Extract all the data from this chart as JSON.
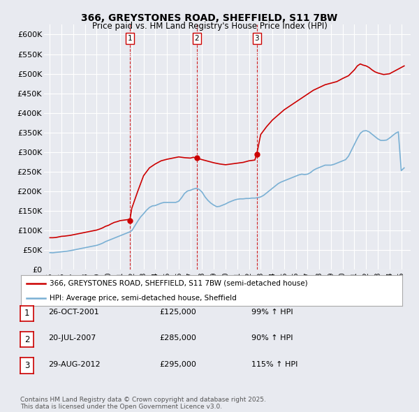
{
  "title_line1": "366, GREYSTONES ROAD, SHEFFIELD, S11 7BW",
  "title_line2": "Price paid vs. HM Land Registry's House Price Index (HPI)",
  "background_color": "#e8eaf0",
  "ylim": [
    0,
    625000
  ],
  "yticks": [
    0,
    50000,
    100000,
    150000,
    200000,
    250000,
    300000,
    350000,
    400000,
    450000,
    500000,
    550000,
    600000
  ],
  "ytick_labels": [
    "£0",
    "£50K",
    "£100K",
    "£150K",
    "£200K",
    "£250K",
    "£300K",
    "£350K",
    "£400K",
    "£450K",
    "£500K",
    "£550K",
    "£600K"
  ],
  "xlim_start": 1994.5,
  "xlim_end": 2025.8,
  "xticks": [
    1995,
    1996,
    1997,
    1998,
    1999,
    2000,
    2001,
    2002,
    2003,
    2004,
    2005,
    2006,
    2007,
    2008,
    2009,
    2010,
    2011,
    2012,
    2013,
    2014,
    2015,
    2016,
    2017,
    2018,
    2019,
    2020,
    2021,
    2022,
    2023,
    2024,
    2025
  ],
  "sale_dates": [
    2001.82,
    2007.55,
    2012.66
  ],
  "sale_prices": [
    125000,
    285000,
    295000
  ],
  "sale_labels": [
    "1",
    "2",
    "3"
  ],
  "legend_line1": "366, GREYSTONES ROAD, SHEFFIELD, S11 7BW (semi-detached house)",
  "legend_line2": "HPI: Average price, semi-detached house, Sheffield",
  "table_rows": [
    {
      "num": "1",
      "date": "26-OCT-2001",
      "price": "£125,000",
      "hpi": "99% ↑ HPI"
    },
    {
      "num": "2",
      "date": "20-JUL-2007",
      "price": "£285,000",
      "hpi": "90% ↑ HPI"
    },
    {
      "num": "3",
      "date": "29-AUG-2012",
      "price": "£295,000",
      "hpi": "115% ↑ HPI"
    }
  ],
  "footer": "Contains HM Land Registry data © Crown copyright and database right 2025.\nThis data is licensed under the Open Government Licence v3.0.",
  "red_color": "#cc0000",
  "blue_color": "#7ab0d4",
  "hpi_data_x": [
    1995.0,
    1995.25,
    1995.5,
    1995.75,
    1996.0,
    1996.25,
    1996.5,
    1996.75,
    1997.0,
    1997.25,
    1997.5,
    1997.75,
    1998.0,
    1998.25,
    1998.5,
    1998.75,
    1999.0,
    1999.25,
    1999.5,
    1999.75,
    2000.0,
    2000.25,
    2000.5,
    2000.75,
    2001.0,
    2001.25,
    2001.5,
    2001.75,
    2002.0,
    2002.25,
    2002.5,
    2002.75,
    2003.0,
    2003.25,
    2003.5,
    2003.75,
    2004.0,
    2004.25,
    2004.5,
    2004.75,
    2005.0,
    2005.25,
    2005.5,
    2005.75,
    2006.0,
    2006.25,
    2006.5,
    2006.75,
    2007.0,
    2007.25,
    2007.5,
    2007.75,
    2008.0,
    2008.25,
    2008.5,
    2008.75,
    2009.0,
    2009.25,
    2009.5,
    2009.75,
    2010.0,
    2010.25,
    2010.5,
    2010.75,
    2011.0,
    2011.25,
    2011.5,
    2011.75,
    2012.0,
    2012.25,
    2012.5,
    2012.75,
    2013.0,
    2013.25,
    2013.5,
    2013.75,
    2014.0,
    2014.25,
    2014.5,
    2014.75,
    2015.0,
    2015.25,
    2015.5,
    2015.75,
    2016.0,
    2016.25,
    2016.5,
    2016.75,
    2017.0,
    2017.25,
    2017.5,
    2017.75,
    2018.0,
    2018.25,
    2018.5,
    2018.75,
    2019.0,
    2019.25,
    2019.5,
    2019.75,
    2020.0,
    2020.25,
    2020.5,
    2020.75,
    2021.0,
    2021.25,
    2021.5,
    2021.75,
    2022.0,
    2022.25,
    2022.5,
    2022.75,
    2023.0,
    2023.25,
    2023.5,
    2023.75,
    2024.0,
    2024.25,
    2024.5,
    2024.75,
    2025.0,
    2025.25
  ],
  "hpi_data_y": [
    44000,
    43500,
    44500,
    45200,
    46000,
    47000,
    47800,
    49000,
    50500,
    52000,
    53500,
    55000,
    56500,
    58000,
    59500,
    61000,
    62500,
    65000,
    68000,
    72000,
    75000,
    78000,
    81000,
    84000,
    87000,
    90000,
    93000,
    96000,
    100000,
    112000,
    124000,
    135000,
    143000,
    152000,
    159000,
    163000,
    164000,
    167000,
    170000,
    172000,
    172000,
    172000,
    172000,
    172000,
    175000,
    184000,
    195000,
    201000,
    203000,
    206000,
    208000,
    205000,
    198000,
    186000,
    177000,
    170000,
    165000,
    161000,
    162000,
    165000,
    168000,
    172000,
    175000,
    178000,
    180000,
    181000,
    181000,
    182000,
    182000,
    183000,
    183000,
    184000,
    186000,
    190000,
    196000,
    202000,
    208000,
    214000,
    220000,
    224000,
    227000,
    230000,
    233000,
    236000,
    239000,
    242000,
    244000,
    243000,
    244000,
    248000,
    254000,
    258000,
    261000,
    264000,
    267000,
    267000,
    267000,
    269000,
    272000,
    275000,
    278000,
    281000,
    290000,
    305000,
    320000,
    335000,
    348000,
    354000,
    355000,
    352000,
    346000,
    340000,
    334000,
    330000,
    330000,
    331000,
    336000,
    342000,
    348000,
    352000,
    253000,
    260000
  ],
  "red_data_x": [
    1995.0,
    1995.25,
    1995.5,
    1995.75,
    1996.0,
    1996.25,
    1996.5,
    1996.75,
    1997.0,
    1997.25,
    1997.5,
    1997.75,
    1998.0,
    1998.25,
    1998.5,
    1998.75,
    1999.0,
    1999.25,
    1999.5,
    1999.75,
    2000.0,
    2000.25,
    2000.5,
    2000.75,
    2001.0,
    2001.25,
    2001.5,
    2001.75,
    2001.82,
    2002.0,
    2002.5,
    2003.0,
    2003.5,
    2004.0,
    2004.5,
    2005.0,
    2005.5,
    2006.0,
    2006.5,
    2007.0,
    2007.25,
    2007.55,
    2007.75,
    2008.0,
    2008.5,
    2009.0,
    2009.5,
    2010.0,
    2010.5,
    2011.0,
    2011.5,
    2012.0,
    2012.5,
    2012.66,
    2013.0,
    2013.5,
    2014.0,
    2014.5,
    2015.0,
    2015.5,
    2016.0,
    2016.5,
    2017.0,
    2017.5,
    2018.0,
    2018.5,
    2019.0,
    2019.5,
    2020.0,
    2020.5,
    2021.0,
    2021.25,
    2021.5,
    2021.75,
    2022.0,
    2022.25,
    2022.5,
    2022.75,
    2023.0,
    2023.5,
    2024.0,
    2024.25,
    2024.5,
    2024.75,
    2025.0,
    2025.25
  ],
  "red_data_y": [
    82000,
    82000,
    82500,
    84000,
    85500,
    86000,
    87000,
    88000,
    89500,
    91000,
    92500,
    94000,
    95500,
    97000,
    98500,
    100000,
    101500,
    104000,
    107000,
    111000,
    113500,
    117500,
    121000,
    123000,
    125500,
    126500,
    127500,
    128500,
    125000,
    157500,
    200000,
    240000,
    260000,
    270000,
    278000,
    282000,
    285000,
    288000,
    286000,
    285000,
    287000,
    285000,
    283000,
    281000,
    277000,
    273000,
    270000,
    268000,
    270000,
    272000,
    274000,
    278000,
    280000,
    295000,
    345000,
    365000,
    382000,
    395000,
    408000,
    418000,
    428000,
    438000,
    448000,
    458000,
    465000,
    472000,
    476000,
    480000,
    488000,
    495000,
    510000,
    520000,
    525000,
    522000,
    520000,
    516000,
    510000,
    505000,
    502000,
    498000,
    500000,
    504000,
    508000,
    512000,
    516000,
    520000
  ]
}
